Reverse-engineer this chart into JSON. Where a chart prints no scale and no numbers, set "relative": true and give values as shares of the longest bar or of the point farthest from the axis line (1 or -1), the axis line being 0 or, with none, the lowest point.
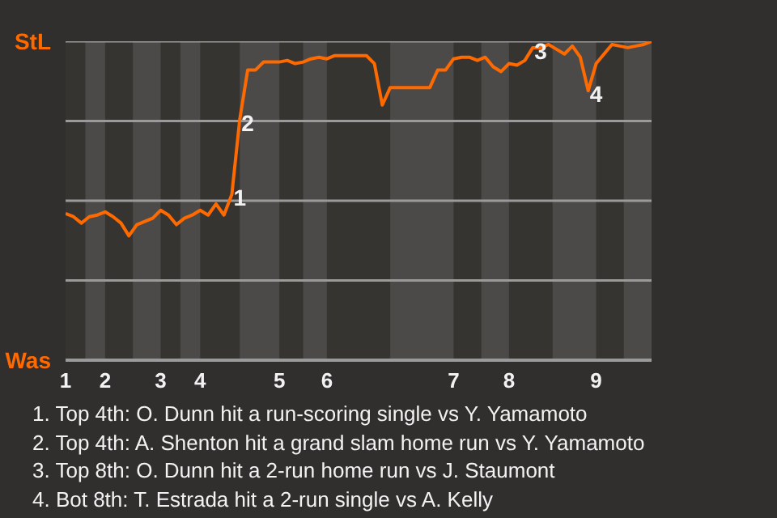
{
  "chart_data": {
    "type": "line",
    "relative": true,
    "categories": [
      "1",
      null,
      null,
      null,
      null,
      "2",
      null,
      null,
      null,
      null,
      null,
      null,
      "3",
      null,
      null,
      null,
      null,
      "4",
      null,
      null,
      null,
      null,
      null,
      null,
      null,
      null,
      null,
      "5",
      null,
      null,
      null,
      null,
      null,
      "6",
      null,
      null,
      null,
      null,
      null,
      null,
      null,
      null,
      null,
      null,
      null,
      null,
      null,
      null,
      null,
      "7",
      null,
      null,
      null,
      null,
      null,
      null,
      "8",
      null,
      null,
      null,
      null,
      null,
      null,
      null,
      null,
      null,
      null,
      "9",
      null,
      null,
      null,
      null,
      null,
      null,
      null
    ],
    "line_style": "solid",
    "series": [
      {
        "color": "#ff6a00",
        "values": [
          0.46,
          0.45,
          0.43,
          0.45,
          0.455,
          0.465,
          0.45,
          0.43,
          0.39,
          0.425,
          0.435,
          0.445,
          0.47,
          0.455,
          0.425,
          0.445,
          0.455,
          0.47,
          0.455,
          0.49,
          0.455,
          0.52,
          0.755,
          0.91,
          0.91,
          0.935,
          0.935,
          0.935,
          0.94,
          0.93,
          0.935,
          0.945,
          0.95,
          0.945,
          0.955,
          0.955,
          0.955,
          0.955,
          0.955,
          0.93,
          0.8,
          0.855,
          0.855,
          0.855,
          0.855,
          0.855,
          0.855,
          0.91,
          0.91,
          0.945,
          0.95,
          0.95,
          0.94,
          0.95,
          0.92,
          0.905,
          0.93,
          0.925,
          0.94,
          0.98,
          0.98,
          0.99,
          0.975,
          0.96,
          0.985,
          0.95,
          0.845,
          0.93,
          0.96,
          0.99,
          0.985,
          0.98,
          0.985,
          0.99,
          1.0
        ]
      }
    ],
    "annotations": [
      "StL",
      "Was",
      {
        "text": "1",
        "y": 0.52
      },
      {
        "text": "2",
        "y": 0.755
      },
      {
        "text": "3",
        "y": 0.98
      },
      {
        "text": "4",
        "y": 0.845
      },
      "1. Top 4th: O. Dunn hit a run-scoring single vs Y. Yamamoto",
      "2. Top 4th: A. Shenton hit a grand slam home run vs Y. Yamamoto",
      "3. Top 8th: O. Dunn hit a 2-run home run vs J. Staumont",
      "4. Bot 8th: T. Estrada hit a 2-run single vs A. Kelly"
    ]
  }
}
